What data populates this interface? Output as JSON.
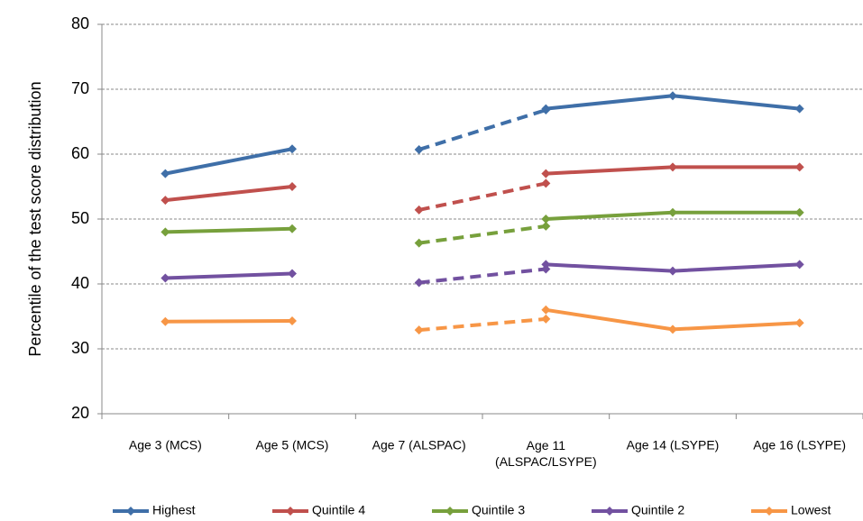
{
  "chart_data": {
    "type": "line",
    "y_label": "Percentile of the test score distribution",
    "categories": [
      "Age 3 (MCS)",
      "Age 5 (MCS)",
      "Age 7 (ALSPAC)",
      "Age 11\n(ALSPAC/LSYPE)",
      "Age 14 (LSYPE)",
      "Age 16 (LSYPE)"
    ],
    "ylim": [
      20,
      80
    ],
    "yticks": [
      20,
      30,
      40,
      50,
      60,
      70,
      80
    ],
    "grid": true,
    "legend": "bottom",
    "series": [
      {
        "name": "Highest",
        "color": "#3f6fa8",
        "values": [
          57,
          60.8,
          null,
          67,
          69,
          67
        ],
        "dashed_values": [
          null,
          null,
          60.7,
          66.8,
          null,
          null
        ]
      },
      {
        "name": "Quintile 4",
        "color": "#c0504d",
        "values": [
          52.9,
          55,
          null,
          57,
          58,
          58
        ],
        "dashed_values": [
          null,
          null,
          51.4,
          55.5,
          null,
          null
        ]
      },
      {
        "name": "Quintile 3",
        "color": "#77a03c",
        "values": [
          48,
          48.5,
          null,
          50,
          51,
          51
        ],
        "dashed_values": [
          null,
          null,
          46.3,
          48.9,
          null,
          null
        ]
      },
      {
        "name": "Quintile 2",
        "color": "#7251a0",
        "values": [
          40.9,
          41.6,
          null,
          43,
          42,
          43
        ],
        "dashed_values": [
          null,
          null,
          40.2,
          42.3,
          null,
          null
        ]
      },
      {
        "name": "Lowest",
        "color": "#f79646",
        "values": [
          34.2,
          34.3,
          null,
          36,
          33,
          34
        ],
        "dashed_values": [
          null,
          null,
          32.9,
          34.6,
          null,
          null
        ]
      }
    ]
  }
}
